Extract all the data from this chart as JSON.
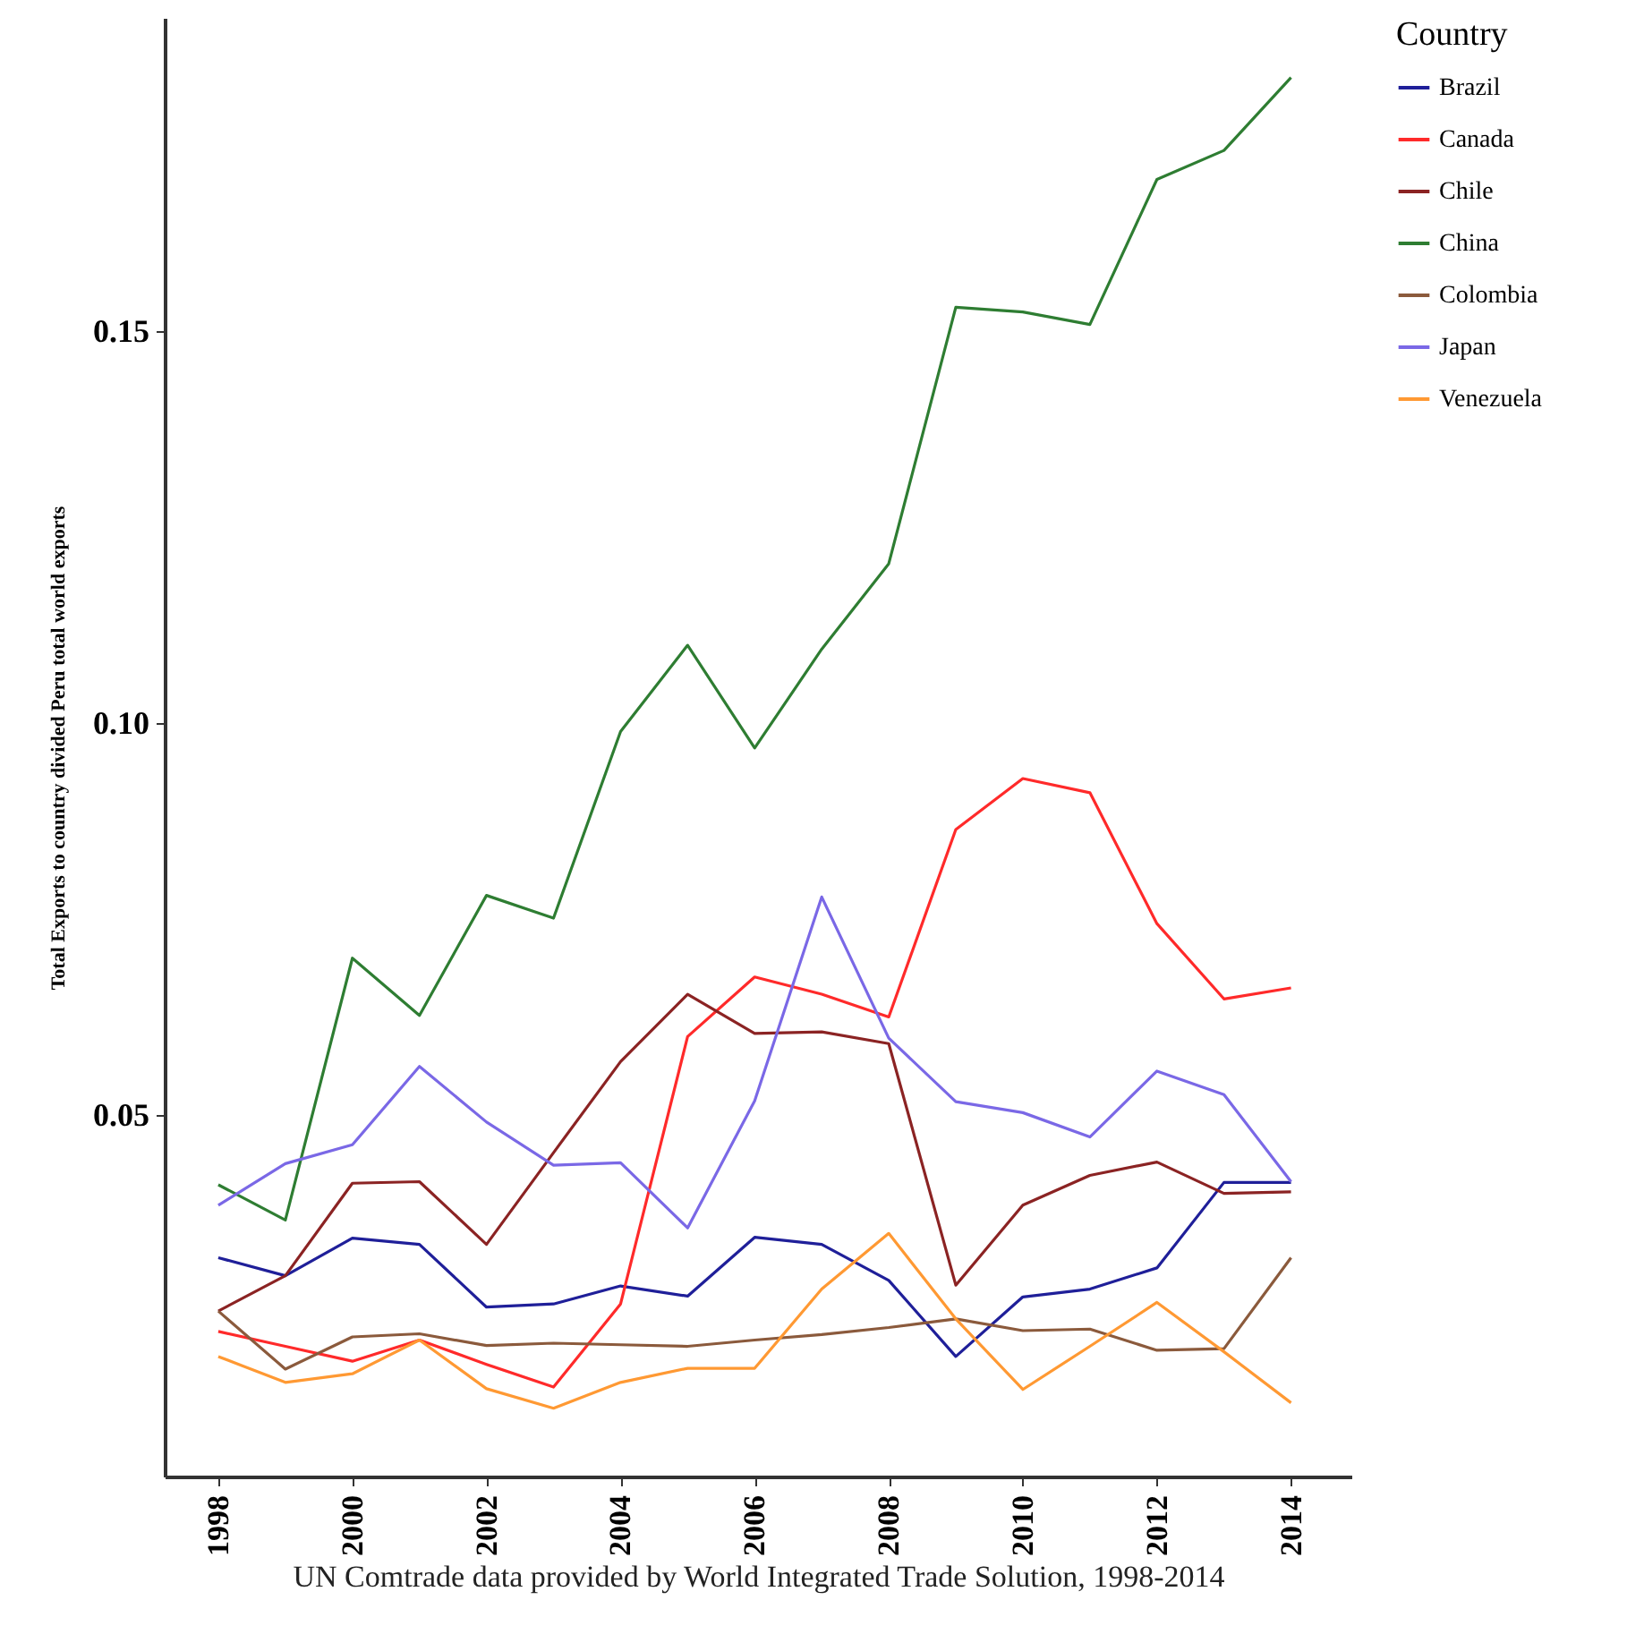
{
  "chart_data": {
    "type": "line",
    "xlabel": "UN Comtrade data provided by World Integrated Trade Solution, 1998-2014",
    "ylabel": "Total Exports to country divided Peru total world exports",
    "legend_title": "Country",
    "x": [
      1998,
      1999,
      2000,
      2001,
      2002,
      2003,
      2004,
      2005,
      2006,
      2007,
      2008,
      2009,
      2010,
      2011,
      2012,
      2013,
      2014
    ],
    "xlim": [
      1997.2,
      2014.9
    ],
    "xticks": [
      1998,
      2000,
      2002,
      2004,
      2006,
      2008,
      2010,
      2012,
      2014
    ],
    "ylim": [
      0.004,
      0.19
    ],
    "yticks": [
      0.05,
      {
        "value": 0.1,
        "label": "0.10"
      },
      0.15
    ],
    "grid": false,
    "legend": "right",
    "series": [
      {
        "name": "Brazil",
        "color": "#1f1f99",
        "values": [
          0.0319,
          0.0296,
          0.0344,
          0.0336,
          0.0256,
          0.026,
          0.0283,
          0.027,
          0.0345,
          0.0336,
          0.029,
          0.0193,
          0.0269,
          0.0279,
          0.0306,
          0.0415,
          0.0415
        ]
      },
      {
        "name": "Canada",
        "color": "#ff2a2a",
        "values": [
          0.0225,
          0.0206,
          0.0187,
          0.0214,
          0.0183,
          0.0154,
          0.026,
          0.0601,
          0.0677,
          0.0655,
          0.0626,
          0.0865,
          0.093,
          0.0912,
          0.0745,
          0.0649,
          0.0663
        ]
      },
      {
        "name": "Chile",
        "color": "#8b2323",
        "values": [
          0.0251,
          0.0296,
          0.0414,
          0.0416,
          0.0336,
          0.0453,
          0.0569,
          0.0655,
          0.0605,
          0.0607,
          0.0592,
          0.0284,
          0.0386,
          0.0424,
          0.0441,
          0.0401,
          0.0403
        ]
      },
      {
        "name": "China",
        "color": "#2e7d32",
        "values": [
          0.0412,
          0.0367,
          0.0701,
          0.0628,
          0.0781,
          0.0752,
          0.099,
          0.11,
          0.0969,
          0.1095,
          0.1204,
          0.1531,
          0.1525,
          0.1509,
          0.1694,
          0.1731,
          0.1824
        ]
      },
      {
        "name": "Colombia",
        "color": "#8b5a3c",
        "values": [
          0.0251,
          0.0177,
          0.0218,
          0.0222,
          0.0207,
          0.021,
          0.0208,
          0.0206,
          0.0214,
          0.0221,
          0.023,
          0.0241,
          0.0226,
          0.0228,
          0.0201,
          0.0203,
          0.0319
        ]
      },
      {
        "name": "Japan",
        "color": "#7a68e6",
        "values": [
          0.0386,
          0.0439,
          0.0463,
          0.0563,
          0.0492,
          0.0437,
          0.044,
          0.0357,
          0.0519,
          0.0779,
          0.0599,
          0.0518,
          0.0504,
          0.0473,
          0.0557,
          0.0527,
          0.0416
        ]
      },
      {
        "name": "Venezuela",
        "color": "#ff9933",
        "values": [
          0.0193,
          0.016,
          0.0171,
          0.0214,
          0.0152,
          0.0127,
          0.016,
          0.0178,
          0.0178,
          0.0279,
          0.035,
          0.0241,
          0.0151,
          0.0206,
          0.0262,
          0.0199,
          0.0134
        ]
      }
    ]
  }
}
